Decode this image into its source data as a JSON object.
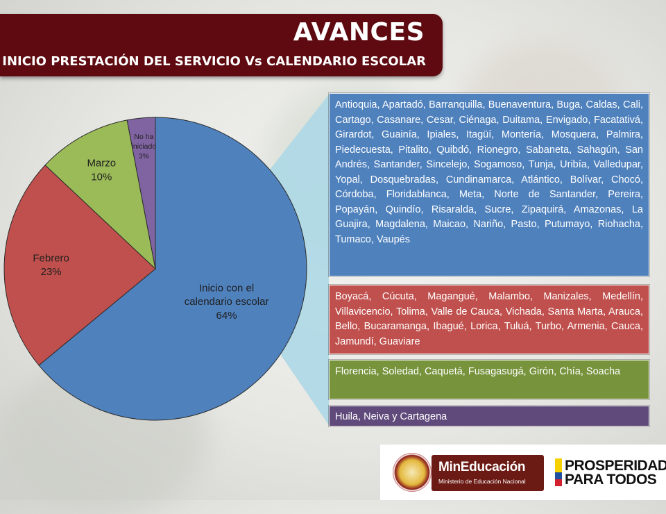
{
  "header": {
    "title": "AVANCES",
    "subtitle": "INICIO PRESTACIÓN DEL SERVICIO Vs CALENDARIO ESCOLAR"
  },
  "chart_data": {
    "type": "pie",
    "title": "",
    "slices": [
      {
        "label": "Inicio con el calendario escolar",
        "value": 64,
        "display": "64%",
        "color": "#4f81bd"
      },
      {
        "label": "Febrero",
        "value": 23,
        "display": "23%",
        "color": "#c0504d"
      },
      {
        "label": "Marzo",
        "value": 10,
        "display": "10%",
        "color": "#9bbb59"
      },
      {
        "label": "No ha iniciado",
        "value": 3,
        "display": "3%",
        "color": "#8064a2"
      }
    ]
  },
  "groups": {
    "inicio": "Antioquia, Apartadó, Barranquilla, Buenaventura, Buga, Caldas, Cali, Cartago, Casanare, Cesar, Ciénaga, Duitama, Envigado, Facatativá, Girardot, Guainía, Ipiales, Itagüí, Montería, Mosquera, Palmira, Piedecuesta, Pitalito, Quibdó, Rionegro, Sabaneta, Sahagún, San Andrés, Santander, Sincelejo, Sogamoso, Tunja, Uribía, Valledupar, Yopal, Dosquebradas, Cundinamarca, Atlántico, Bolívar, Chocó, Córdoba, Floridablanca, Meta, Norte de Santander, Pereira, Popayán, Quindío, Risaralda, Sucre, Zipaquirá, Amazonas, La Guajira, Magdalena, Maicao, Nariño, Pasto, Putumayo, Riohacha, Tumaco, Vaupés",
    "febrero": "Boyacá, Cúcuta, Magangué, Malambo, Manizales, Medellín, Villavicencio, Tolima, Valle de Cauca, Vichada, Santa Marta, Arauca, Bello, Bucaramanga, Ibagué, Lorica, Tuluá, Turbo, Armenia, Cauca, Jamundí, Guaviare",
    "marzo": "Florencia, Soledad, Caquetá, Fusagasugá, Girón, Chía, Soacha",
    "no_iniciado": "Huila, Neiva y Cartagena"
  },
  "footer": {
    "ministry_name": "MinEducación",
    "ministry_sub": "Ministerio de Educación Nacional",
    "slogan_line1": "PROSPERIDAD",
    "slogan_line2": "PARA TODOS"
  },
  "colors": {
    "banner": "#5e0a10",
    "connector": "#add8e6"
  }
}
